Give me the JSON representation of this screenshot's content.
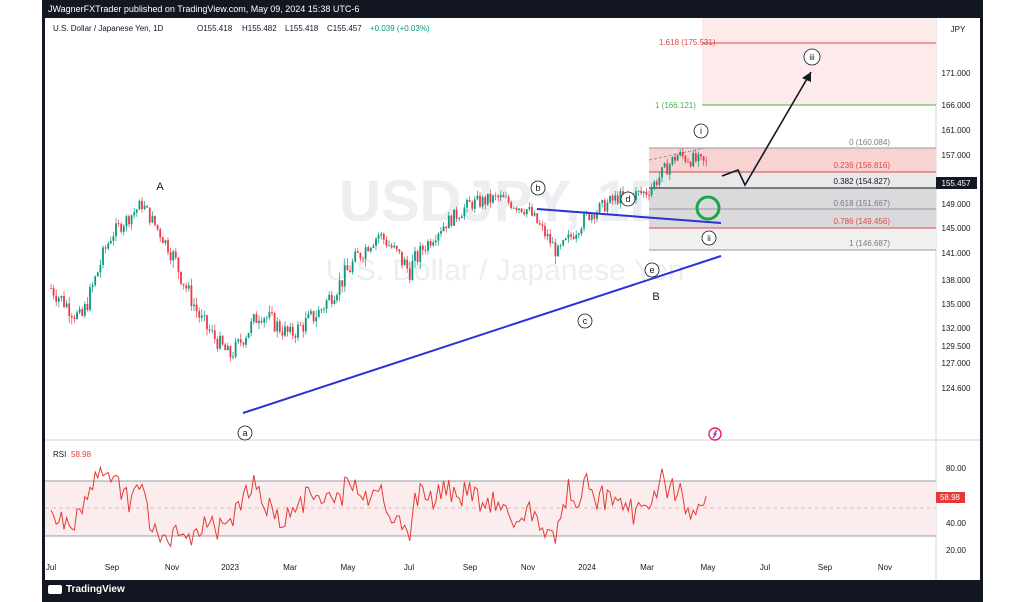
{
  "publisher": "JWagnerFXTrader published on TradingView.com, May 09, 2024 15:38 UTC-6",
  "header": {
    "symbol": "U.S. Dollar / Japanese Yen, 1D",
    "o": "O155.418",
    "h": "H155.482",
    "l": "L155.418",
    "c": "C155.457",
    "chg": "+0.039 (+0.03%)"
  },
  "currency": "JPY",
  "watermark": {
    "symbol": "USDJPY, 1D",
    "name": "U.S. Dollar / Japanese Yen"
  },
  "last_price": "155.457",
  "rsi": {
    "label": "RSI",
    "value": "58.98",
    "ticks": [
      "80.00",
      "60.00",
      "40.00",
      "20.00"
    ]
  },
  "price_ticks": [
    "175.531",
    "171.000",
    "166.000",
    "161.000",
    "157.000",
    "153.000",
    "149.000",
    "145.000",
    "141.000",
    "138.000",
    "135.000",
    "132.000",
    "129.500",
    "127.000",
    "124.600"
  ],
  "time_ticks": [
    "Jul",
    "Sep",
    "Nov",
    "2023",
    "Mar",
    "May",
    "Jul",
    "Sep",
    "Nov",
    "2024",
    "Mar",
    "May",
    "Jul",
    "Sep",
    "Nov"
  ],
  "fib_upper": [
    {
      "label": "1.618 (175.531)",
      "color": "#e04848"
    },
    {
      "label": "1 (166.121)",
      "color": "#4caf50"
    }
  ],
  "fib_levels": [
    {
      "label": "0 (160.084)",
      "color": "#787b86"
    },
    {
      "label": "0.236 (156.816)",
      "color": "#e04848"
    },
    {
      "label": "0.382 (154.827)",
      "color": "#131722"
    },
    {
      "label": "0.618 (151.667)",
      "color": "#787b86"
    },
    {
      "label": "0.786 (149.456)",
      "color": "#e04848"
    },
    {
      "label": "1 (146.687)",
      "color": "#787b86"
    }
  ],
  "wave_labels": {
    "A": "A",
    "B": "B",
    "a": "a",
    "b": "b",
    "c": "c",
    "d": "d",
    "e": "e",
    "i": "i",
    "ii": "ii",
    "iii": "iii"
  },
  "tradingview": "TradingView",
  "chart_data": {
    "type": "candlestick",
    "instrument": "U.S. Dollar / Japanese Yen",
    "timeframe": "1D",
    "approx_closes_by_month": [
      {
        "x": "2022-07",
        "y": 137
      },
      {
        "x": "2022-08",
        "y": 133
      },
      {
        "x": "2022-09",
        "y": 144
      },
      {
        "x": "2022-10",
        "y": 149
      },
      {
        "x": "2022-11",
        "y": 141
      },
      {
        "x": "2022-12",
        "y": 133
      },
      {
        "x": "2023-01",
        "y": 128
      },
      {
        "x": "2023-02",
        "y": 134
      },
      {
        "x": "2023-03",
        "y": 131
      },
      {
        "x": "2023-04",
        "y": 134
      },
      {
        "x": "2023-05",
        "y": 139
      },
      {
        "x": "2023-06",
        "y": 144
      },
      {
        "x": "2023-07",
        "y": 139
      },
      {
        "x": "2023-08",
        "y": 145
      },
      {
        "x": "2023-09",
        "y": 149
      },
      {
        "x": "2023-10",
        "y": 150
      },
      {
        "x": "2023-11",
        "y": 148
      },
      {
        "x": "2023-12",
        "y": 141
      },
      {
        "x": "2024-01",
        "y": 147
      },
      {
        "x": "2024-02",
        "y": 150
      },
      {
        "x": "2024-03",
        "y": 151
      },
      {
        "x": "2024-04",
        "y": 157
      },
      {
        "x": "2024-05",
        "y": 155.457
      }
    ],
    "ylim": [
      124.6,
      177
    ],
    "rsi_last": 58.98
  }
}
